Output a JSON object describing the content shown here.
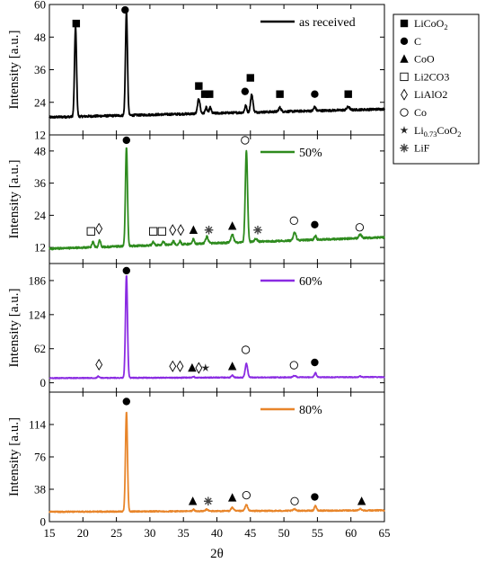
{
  "chart_data": [
    {
      "type": "line",
      "ylabel": "Intensity [a.u.]",
      "xlabel": "",
      "xlim": [
        15,
        65
      ],
      "ylim": [
        12,
        60
      ],
      "yticks": [
        12,
        24,
        36,
        48,
        60
      ],
      "series": [
        {
          "name": "as received",
          "color": "#000000",
          "baseline": 18.5,
          "slope": 0.06,
          "noise": 0.4,
          "peaks": [
            [
              18.9,
              33,
              0.15
            ],
            [
              26.5,
              38,
              0.15
            ],
            [
              37.3,
              5.5,
              0.18
            ],
            [
              38.4,
              2.2,
              0.15
            ],
            [
              39.0,
              2.2,
              0.15
            ],
            [
              44.3,
              2.5,
              0.15
            ],
            [
              45.2,
              6.5,
              0.18
            ],
            [
              49.4,
              1.5,
              0.18
            ],
            [
              54.6,
              1.5,
              0.15
            ],
            [
              59.6,
              1.2,
              0.2
            ]
          ]
        }
      ],
      "markers": [
        {
          "x": 19.0,
          "y": 53,
          "symbol": "square-filled"
        },
        {
          "x": 26.3,
          "y": 58,
          "symbol": "circle-filled"
        },
        {
          "x": 37.3,
          "y": 30,
          "symbol": "square-filled"
        },
        {
          "x": 38.2,
          "y": 27,
          "symbol": "square-filled"
        },
        {
          "x": 38.9,
          "y": 27,
          "symbol": "square-filled"
        },
        {
          "x": 44.2,
          "y": 28,
          "symbol": "circle-filled"
        },
        {
          "x": 45.0,
          "y": 33,
          "symbol": "square-filled"
        },
        {
          "x": 49.4,
          "y": 27,
          "symbol": "square-filled"
        },
        {
          "x": 54.6,
          "y": 27,
          "symbol": "circle-filled"
        },
        {
          "x": 59.6,
          "y": 27,
          "symbol": "square-filled"
        }
      ],
      "legend": {
        "location": "upper right"
      }
    },
    {
      "type": "line",
      "ylabel": "Intensity [a.u.]",
      "xlabel": "",
      "xlim": [
        15,
        65
      ],
      "ylim": [
        6,
        54
      ],
      "yticks": [
        12,
        24,
        36,
        48
      ],
      "series": [
        {
          "name": "50%",
          "color": "#2e8b1e",
          "baseline": 11.5,
          "slope": 0.085,
          "noise": 0.35,
          "peaks": [
            [
              21.5,
              2.0,
              0.15
            ],
            [
              22.5,
              2.5,
              0.15
            ],
            [
              26.5,
              37,
              0.15
            ],
            [
              30.5,
              1.2,
              0.15
            ],
            [
              32.0,
              1.2,
              0.15
            ],
            [
              33.5,
              1.2,
              0.15
            ],
            [
              34.5,
              1.2,
              0.15
            ],
            [
              36.5,
              1.8,
              0.15
            ],
            [
              38.5,
              2.5,
              0.2
            ],
            [
              42.3,
              3.0,
              0.2
            ],
            [
              44.4,
              34,
              0.17
            ],
            [
              45.8,
              1.2,
              0.2
            ],
            [
              51.6,
              3.0,
              0.2
            ],
            [
              54.7,
              1.5,
              0.15
            ],
            [
              61.4,
              1.5,
              0.2
            ]
          ]
        }
      ],
      "markers": [
        {
          "x": 21.2,
          "y": 18,
          "symbol": "square-open"
        },
        {
          "x": 22.4,
          "y": 19,
          "symbol": "diamond-open"
        },
        {
          "x": 26.5,
          "y": 52,
          "symbol": "circle-filled"
        },
        {
          "x": 30.5,
          "y": 18,
          "symbol": "square-open"
        },
        {
          "x": 31.8,
          "y": 18,
          "symbol": "square-open"
        },
        {
          "x": 33.4,
          "y": 18.5,
          "symbol": "diamond-open"
        },
        {
          "x": 34.6,
          "y": 18.5,
          "symbol": "diamond-open"
        },
        {
          "x": 36.5,
          "y": 18.5,
          "symbol": "triangle-filled"
        },
        {
          "x": 38.8,
          "y": 18.5,
          "symbol": "asterisk"
        },
        {
          "x": 42.3,
          "y": 20,
          "symbol": "triangle-filled"
        },
        {
          "x": 44.2,
          "y": 52,
          "symbol": "circle-open"
        },
        {
          "x": 46.1,
          "y": 18.5,
          "symbol": "asterisk"
        },
        {
          "x": 51.5,
          "y": 22,
          "symbol": "circle-open"
        },
        {
          "x": 54.6,
          "y": 20.5,
          "symbol": "circle-filled"
        },
        {
          "x": 61.3,
          "y": 19.5,
          "symbol": "circle-open"
        }
      ],
      "legend": {
        "location": "upper right"
      }
    },
    {
      "type": "line",
      "ylabel": "Intensity [a.u.]",
      "xlabel": "",
      "xlim": [
        15,
        65
      ],
      "ylim": [
        -17,
        217
      ],
      "yticks": [
        0,
        62,
        124,
        186
      ],
      "series": [
        {
          "name": "60%",
          "color": "#8a2be2",
          "baseline": 8.5,
          "slope": 0.04,
          "noise": 0.8,
          "peaks": [
            [
              22.3,
              3,
              0.15
            ],
            [
              26.5,
              187,
              0.15
            ],
            [
              36.5,
              2,
              0.15
            ],
            [
              42.3,
              4,
              0.15
            ],
            [
              44.4,
              25,
              0.18
            ],
            [
              51.6,
              3,
              0.2
            ],
            [
              54.7,
              8,
              0.15
            ],
            [
              61.4,
              1.5,
              0.2
            ]
          ]
        }
      ],
      "markers": [
        {
          "x": 22.4,
          "y": 33,
          "symbol": "diamond-open"
        },
        {
          "x": 26.5,
          "y": 204,
          "symbol": "circle-filled"
        },
        {
          "x": 33.4,
          "y": 30,
          "symbol": "diamond-open"
        },
        {
          "x": 34.5,
          "y": 30,
          "symbol": "diamond-open"
        },
        {
          "x": 36.3,
          "y": 27,
          "symbol": "triangle-filled"
        },
        {
          "x": 37.3,
          "y": 27,
          "symbol": "diamond-open"
        },
        {
          "x": 38.3,
          "y": 27,
          "symbol": "star"
        },
        {
          "x": 42.3,
          "y": 30,
          "symbol": "triangle-filled"
        },
        {
          "x": 44.3,
          "y": 60,
          "symbol": "circle-open"
        },
        {
          "x": 51.5,
          "y": 32,
          "symbol": "circle-open"
        },
        {
          "x": 54.6,
          "y": 37,
          "symbol": "circle-filled"
        }
      ],
      "legend": {
        "location": "upper right"
      }
    },
    {
      "type": "line",
      "ylabel": "Intensity [a.u.]",
      "xlabel": "2θ",
      "xlim": [
        15,
        65
      ],
      "ylim": [
        0,
        152
      ],
      "yticks": [
        0,
        38,
        76,
        114
      ],
      "series": [
        {
          "name": "80%",
          "color": "#e8852a",
          "baseline": 11.5,
          "slope": 0.035,
          "noise": 0.7,
          "peaks": [
            [
              26.5,
              117,
              0.15
            ],
            [
              36.5,
              2,
              0.15
            ],
            [
              38.5,
              2,
              0.2
            ],
            [
              42.3,
              4,
              0.2
            ],
            [
              44.4,
              7,
              0.2
            ],
            [
              51.6,
              2,
              0.2
            ],
            [
              54.7,
              6,
              0.15
            ],
            [
              61.4,
              2,
              0.2
            ]
          ]
        }
      ],
      "markers": [
        {
          "x": 26.5,
          "y": 141,
          "symbol": "circle-filled"
        },
        {
          "x": 36.4,
          "y": 24,
          "symbol": "triangle-filled"
        },
        {
          "x": 38.7,
          "y": 24,
          "symbol": "asterisk"
        },
        {
          "x": 42.3,
          "y": 28,
          "symbol": "triangle-filled"
        },
        {
          "x": 44.4,
          "y": 31,
          "symbol": "circle-open"
        },
        {
          "x": 51.6,
          "y": 24,
          "symbol": "circle-open"
        },
        {
          "x": 54.6,
          "y": 29,
          "symbol": "circle-filled"
        },
        {
          "x": 61.6,
          "y": 24,
          "symbol": "triangle-filled"
        }
      ],
      "legend": {
        "location": "upper right"
      }
    }
  ],
  "shared_x": {
    "label": "2θ",
    "ticks": [
      15,
      20,
      25,
      30,
      35,
      40,
      45,
      50,
      55,
      60,
      65
    ]
  },
  "legend_box": [
    {
      "symbol": "square-filled",
      "text": "LiCoO",
      "sub": "2"
    },
    {
      "symbol": "circle-filled",
      "text": "C"
    },
    {
      "symbol": "triangle-filled",
      "text": "CoO"
    },
    {
      "symbol": "square-open",
      "text": "Li2CO3"
    },
    {
      "symbol": "diamond-open",
      "text": "LiAlO2"
    },
    {
      "symbol": "circle-open",
      "text": "Co"
    },
    {
      "symbol": "star",
      "text": "Li",
      "sub": "0.73",
      "text2": "CoO",
      "sub2": "2"
    },
    {
      "symbol": "asterisk",
      "text": "LiF"
    }
  ]
}
